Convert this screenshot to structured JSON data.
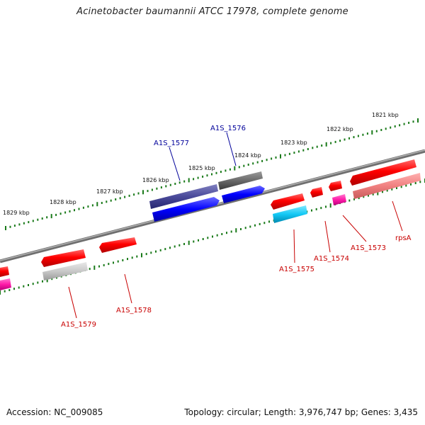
{
  "title": "Acinetobacter baumannii ATCC 17978, complete genome",
  "footer": {
    "accession": "Accession: NC_009085",
    "summary": "Topology: circular; Length: 3,976,747 bp; Genes: 3,435"
  },
  "colors": {
    "backbone": "#808080",
    "tick": "#1a7a1a",
    "forward_label": "#00009a",
    "reverse_label": "#c80000"
  },
  "ticks": [
    {
      "label": "1821 kbp"
    },
    {
      "label": "1822 kbp"
    },
    {
      "label": "1823 kbp"
    },
    {
      "label": "1824 kbp"
    },
    {
      "label": "1825 kbp"
    },
    {
      "label": "1826 kbp"
    },
    {
      "label": "1827 kbp"
    },
    {
      "label": "1828 kbp"
    },
    {
      "label": "1829 kbp"
    }
  ],
  "genes": [
    {
      "label": "A1S_1576",
      "strand": "forward"
    },
    {
      "label": "A1S_1577",
      "strand": "forward"
    },
    {
      "label": "A1S_1575",
      "strand": "reverse"
    },
    {
      "label": "A1S_1574",
      "strand": "reverse"
    },
    {
      "label": "A1S_1573",
      "strand": "reverse"
    },
    {
      "label": "rpsA",
      "strand": "reverse"
    },
    {
      "label": "A1S_1578",
      "strand": "reverse"
    },
    {
      "label": "A1S_1579",
      "strand": "reverse"
    }
  ]
}
